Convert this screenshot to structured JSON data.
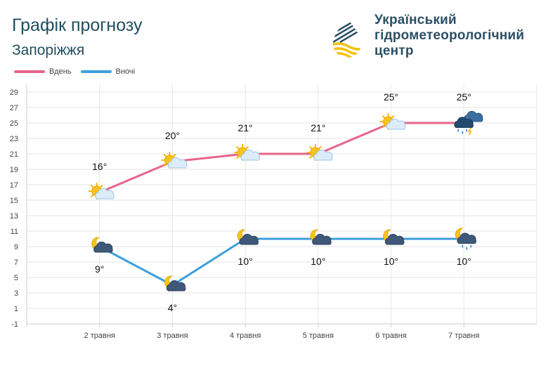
{
  "header": {
    "title": "Графік прогнозу",
    "city": "Запоріжжя",
    "org_line1": "Український",
    "org_line2": "гідрометеорологічний",
    "org_line3": "центр"
  },
  "logo": {
    "icon": "drop-waves-logo",
    "colors": [
      "#2b4f66",
      "#f2c200"
    ]
  },
  "chart_data": {
    "type": "line",
    "categories": [
      "2 травня",
      "3 травня",
      "4 травня",
      "5 травня",
      "6 травня",
      "7 травня"
    ],
    "series": [
      {
        "name": "Вдень",
        "color": "#e8658a",
        "values": [
          16,
          20,
          21,
          21,
          25,
          25
        ],
        "labels": [
          "16°",
          "20°",
          "21°",
          "21°",
          "25°",
          "25°"
        ],
        "icons": [
          "sun-cloud-icon",
          "sun-cloud-icon",
          "sun-cloud-icon",
          "sun-cloud-icon",
          "sun-cloud-icon",
          "thunderstorm-rain-icon"
        ]
      },
      {
        "name": "Вночі",
        "color": "#3d9fdc",
        "values": [
          9,
          4,
          10,
          10,
          10,
          10
        ],
        "labels": [
          "9°",
          "4°",
          "10°",
          "10°",
          "10°",
          "10°"
        ],
        "icons": [
          "moon-cloud-icon",
          "moon-cloud-icon",
          "moon-cloud-icon",
          "moon-cloud-icon",
          "moon-cloud-icon",
          "moon-cloud-rain-icon"
        ]
      }
    ],
    "y_ticks": [
      "29",
      "27",
      "25",
      "23",
      "21",
      "19",
      "17",
      "15",
      "13",
      "11",
      "9",
      "7",
      "5",
      "3",
      "1",
      "-1"
    ],
    "ylim": [
      -1,
      30
    ],
    "grid": true,
    "legend_position": "top-left"
  }
}
